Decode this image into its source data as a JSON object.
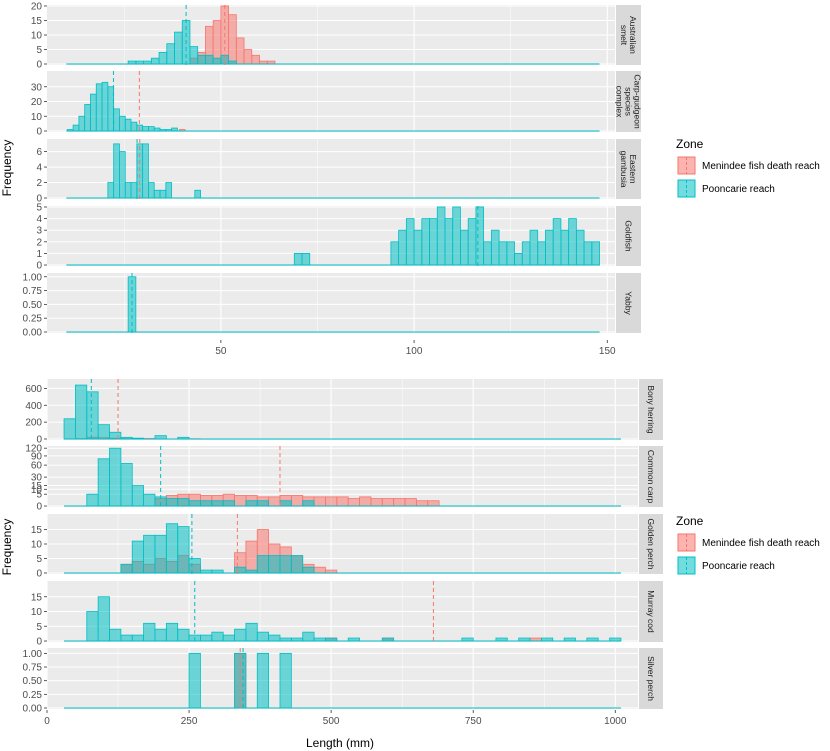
{
  "colors": {
    "menindee": "#F8766D",
    "pooncarie": "#00BFC4",
    "panel_bg": "#EBEBEB",
    "strip_bg": "#D9D9D9",
    "grid": "#FFFFFF"
  },
  "chart_data": [
    {
      "type": "histogram",
      "facets": [
        "Australian smelt",
        "Carp-gudgeon species complex",
        "Eastern gambusia",
        "Goldfish",
        "Yabby"
      ],
      "xlabel": "",
      "ylabel": "Frequency",
      "xlim": [
        5,
        152
      ],
      "xticks": [
        50,
        100,
        150
      ],
      "legend": {
        "title": "Zone",
        "position": "right",
        "entries": [
          "Menindee fish death reach",
          "Pooncarie reach"
        ]
      },
      "panels": [
        {
          "name": "Australian smelt",
          "ylim": [
            0,
            20
          ],
          "yticks": [
            0,
            5,
            10,
            15,
            20
          ],
          "binwidth": 2,
          "menindee": [
            [
              43,
              2
            ],
            [
              45,
              4
            ],
            [
              47,
              13
            ],
            [
              49,
              15
            ],
            [
              51,
              20
            ],
            [
              53,
              17
            ],
            [
              55,
              9
            ],
            [
              57,
              5
            ],
            [
              59,
              3
            ],
            [
              61,
              1
            ],
            [
              63,
              1
            ]
          ],
          "pooncarie": [
            [
              27,
              1
            ],
            [
              29,
              1
            ],
            [
              31,
              1
            ],
            [
              33,
              2
            ],
            [
              35,
              4
            ],
            [
              37,
              7
            ],
            [
              39,
              11
            ],
            [
              41,
              15
            ],
            [
              43,
              6
            ],
            [
              45,
              3
            ],
            [
              47,
              3
            ],
            [
              49,
              2
            ],
            [
              51,
              3
            ],
            [
              53,
              1
            ]
          ],
          "mean_menindee": 51,
          "mean_pooncarie": 41
        },
        {
          "name": "Carp-gudgeon species complex",
          "ylim": [
            0,
            40
          ],
          "yticks": [
            0,
            10,
            20,
            30
          ],
          "binwidth": 1.5,
          "menindee": [
            [
              40,
              1
            ]
          ],
          "pooncarie": [
            [
              11,
              1
            ],
            [
              12.5,
              4
            ],
            [
              14,
              10
            ],
            [
              15.5,
              18
            ],
            [
              17,
              25
            ],
            [
              18.5,
              32
            ],
            [
              20,
              33
            ],
            [
              21.5,
              30
            ],
            [
              23,
              15
            ],
            [
              24.5,
              10
            ],
            [
              26,
              8
            ],
            [
              27.5,
              6
            ],
            [
              29,
              4
            ],
            [
              30.5,
              3
            ],
            [
              32,
              3
            ],
            [
              33.5,
              2
            ],
            [
              35,
              1
            ],
            [
              36.5,
              1
            ],
            [
              38,
              2
            ]
          ],
          "mean_menindee": 28.9,
          "mean_pooncarie": 22.2
        },
        {
          "name": "Eastern gambusia",
          "ylim": [
            0,
            7.5
          ],
          "yticks": [
            0,
            2,
            4,
            6
          ],
          "binwidth": 1.5,
          "menindee": [],
          "pooncarie": [
            [
              21.5,
              2
            ],
            [
              23,
              7
            ],
            [
              24.5,
              6
            ],
            [
              26,
              2
            ],
            [
              27.5,
              2
            ],
            [
              29,
              7
            ],
            [
              30.5,
              7
            ],
            [
              32,
              2
            ],
            [
              33.5,
              1
            ],
            [
              35,
              1
            ],
            [
              36.5,
              2
            ],
            [
              44,
              1
            ]
          ],
          "mean_menindee": 29,
          "mean_pooncarie": 28.3
        },
        {
          "name": "Goldfish",
          "ylim": [
            0,
            5
          ],
          "yticks": [
            0,
            1,
            2,
            3,
            4,
            5
          ],
          "binwidth": 2,
          "menindee": [],
          "pooncarie": [
            [
              70,
              1
            ],
            [
              72,
              1
            ],
            [
              95,
              2
            ],
            [
              97,
              3
            ],
            [
              99,
              4
            ],
            [
              101,
              3
            ],
            [
              103,
              4
            ],
            [
              105,
              4
            ],
            [
              107,
              5
            ],
            [
              109,
              4
            ],
            [
              111,
              5
            ],
            [
              113,
              3
            ],
            [
              115,
              4
            ],
            [
              117,
              5
            ],
            [
              119,
              2
            ],
            [
              121,
              3
            ],
            [
              123,
              2
            ],
            [
              125,
              2
            ],
            [
              127,
              1
            ],
            [
              129,
              2
            ],
            [
              131,
              3
            ],
            [
              133,
              2
            ],
            [
              135,
              3
            ],
            [
              137,
              4
            ],
            [
              139,
              3
            ],
            [
              141,
              4
            ],
            [
              143,
              3
            ],
            [
              145,
              2
            ],
            [
              147,
              2
            ]
          ],
          "mean_menindee": null,
          "mean_pooncarie": 116.5
        },
        {
          "name": "Yabby",
          "ylim": [
            0,
            1.05
          ],
          "yticks": [
            "0.00",
            "0.25",
            "0.50",
            "0.75",
            "1.00"
          ],
          "binwidth": 2,
          "menindee": [],
          "pooncarie": [
            [
              27,
              1
            ]
          ],
          "mean_menindee": null,
          "mean_pooncarie": 27
        }
      ]
    },
    {
      "type": "histogram",
      "facets": [
        "Bony herring",
        "Common carp",
        "Golden perch",
        "Murray cod",
        "Silver perch"
      ],
      "xlabel": "Length (mm)",
      "ylabel": "Frequency",
      "xlim": [
        0,
        1040
      ],
      "xticks": [
        0,
        250,
        500,
        750,
        1000
      ],
      "legend": {
        "title": "Zone",
        "position": "right",
        "entries": [
          "Menindee fish death reach",
          "Pooncarie reach"
        ]
      },
      "panels": [
        {
          "name": "Bony herring",
          "ylim": [
            0,
            700
          ],
          "yticks": [
            0,
            200,
            400,
            600
          ],
          "binwidth": 20,
          "menindee": [
            [
              60,
              5
            ],
            [
              80,
              20
            ],
            [
              100,
              15
            ],
            [
              120,
              10
            ],
            [
              140,
              5
            ],
            [
              180,
              6
            ],
            [
              260,
              3
            ]
          ],
          "pooncarie": [
            [
              40,
              240
            ],
            [
              60,
              640
            ],
            [
              80,
              560
            ],
            [
              100,
              170
            ],
            [
              120,
              80
            ],
            [
              140,
              20
            ],
            [
              160,
              10
            ],
            [
              200,
              40
            ],
            [
              240,
              20
            ]
          ],
          "mean_menindee": 125,
          "mean_pooncarie": 78
        },
        {
          "name": "Common carp",
          "ylim": [
            0,
            125
          ],
          "yticks": [
            0,
            5,
            10,
            15,
            30,
            60,
            90,
            120
          ],
          "scale": "sqrt",
          "binwidth": 20,
          "menindee": [
            [
              200,
              2
            ],
            [
              220,
              4
            ],
            [
              240,
              5
            ],
            [
              260,
              5
            ],
            [
              280,
              4
            ],
            [
              300,
              4
            ],
            [
              320,
              5
            ],
            [
              340,
              4
            ],
            [
              360,
              4
            ],
            [
              380,
              3
            ],
            [
              400,
              3
            ],
            [
              420,
              4
            ],
            [
              440,
              4
            ],
            [
              460,
              3
            ],
            [
              480,
              3
            ],
            [
              500,
              3
            ],
            [
              520,
              3
            ],
            [
              540,
              2
            ],
            [
              560,
              3
            ],
            [
              580,
              2
            ],
            [
              600,
              2
            ],
            [
              620,
              2
            ],
            [
              640,
              2
            ],
            [
              660,
              1
            ],
            [
              680,
              1
            ]
          ],
          "pooncarie": [
            [
              80,
              5
            ],
            [
              100,
              80
            ],
            [
              120,
              120
            ],
            [
              140,
              65
            ],
            [
              160,
              15
            ],
            [
              180,
              5
            ],
            [
              200,
              3
            ],
            [
              220,
              2
            ],
            [
              240,
              2
            ],
            [
              260,
              1
            ],
            [
              280,
              1
            ],
            [
              300,
              1
            ],
            [
              320,
              1
            ],
            [
              360,
              1
            ],
            [
              380,
              1
            ],
            [
              420,
              1
            ],
            [
              460,
              1
            ]
          ],
          "mean_menindee": 410,
          "mean_pooncarie": 200
        },
        {
          "name": "Golden perch",
          "ylim": [
            0,
            20
          ],
          "yticks": [
            0,
            5,
            10,
            15
          ],
          "binwidth": 20,
          "menindee": [
            [
              140,
              3
            ],
            [
              160,
              4
            ],
            [
              180,
              3
            ],
            [
              200,
              5
            ],
            [
              220,
              4
            ],
            [
              240,
              6
            ],
            [
              260,
              3
            ],
            [
              340,
              7
            ],
            [
              360,
              11
            ],
            [
              380,
              15
            ],
            [
              400,
              10
            ],
            [
              420,
              9
            ],
            [
              440,
              6
            ],
            [
              460,
              3
            ],
            [
              480,
              2
            ],
            [
              500,
              1
            ]
          ],
          "pooncarie": [
            [
              140,
              3
            ],
            [
              160,
              11
            ],
            [
              180,
              13
            ],
            [
              200,
              13
            ],
            [
              220,
              17
            ],
            [
              240,
              16
            ],
            [
              260,
              5
            ],
            [
              280,
              1
            ],
            [
              300,
              1
            ],
            [
              340,
              2
            ],
            [
              360,
              1
            ],
            [
              380,
              6
            ],
            [
              400,
              6
            ],
            [
              420,
              6
            ],
            [
              440,
              6
            ],
            [
              460,
              2
            ]
          ],
          "mean_menindee": 335,
          "mean_pooncarie": 255
        },
        {
          "name": "Murray cod",
          "ylim": [
            0,
            20
          ],
          "yticks": [
            0,
            5,
            10,
            15
          ],
          "binwidth": 20,
          "menindee": [
            [
              500,
              1
            ],
            [
              600,
              1
            ],
            [
              860,
              1
            ]
          ],
          "pooncarie": [
            [
              80,
              10
            ],
            [
              100,
              15
            ],
            [
              120,
              4
            ],
            [
              140,
              2
            ],
            [
              160,
              2
            ],
            [
              180,
              6
            ],
            [
              200,
              4
            ],
            [
              220,
              6
            ],
            [
              240,
              4
            ],
            [
              260,
              2
            ],
            [
              280,
              2
            ],
            [
              300,
              3
            ],
            [
              320,
              2
            ],
            [
              340,
              4
            ],
            [
              360,
              6
            ],
            [
              380,
              3
            ],
            [
              400,
              2
            ],
            [
              420,
              1
            ],
            [
              440,
              1
            ],
            [
              460,
              3
            ],
            [
              480,
              1
            ],
            [
              500,
              1
            ],
            [
              540,
              1
            ],
            [
              600,
              1
            ],
            [
              740,
              1
            ],
            [
              800,
              1
            ],
            [
              840,
              1
            ],
            [
              880,
              1
            ],
            [
              920,
              1
            ],
            [
              960,
              1
            ],
            [
              1000,
              1
            ]
          ],
          "mean_menindee": 680,
          "mean_pooncarie": 260
        },
        {
          "name": "Silver perch",
          "ylim": [
            0,
            1.08
          ],
          "yticks": [
            "0.00",
            "0.25",
            "0.50",
            "0.75",
            "1.00"
          ],
          "binwidth": 20,
          "menindee": [
            [
              340,
              1
            ]
          ],
          "pooncarie": [
            [
              260,
              1
            ],
            [
              340,
              1
            ],
            [
              380,
              1
            ],
            [
              420,
              1
            ]
          ],
          "mean_menindee": 340,
          "mean_pooncarie": 345
        }
      ]
    }
  ]
}
